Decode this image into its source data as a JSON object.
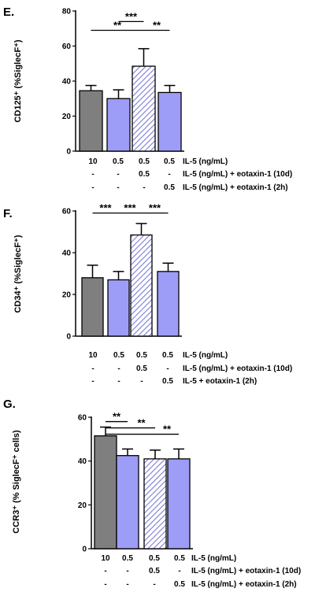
{
  "colors": {
    "dark": "#7f7f7f",
    "light": "#9d9df7",
    "hatch_stroke": "#7b7bd6",
    "hatch_bg": "#ffffff"
  },
  "chart_data": [
    {
      "panel": "E.",
      "type": "bar",
      "ylabel": "CD125⁺ (%SiglecF⁺)",
      "ylim": [
        0,
        80
      ],
      "yticks": [
        "0",
        "20",
        "40",
        "60",
        "80"
      ],
      "tick_values": [
        0,
        20,
        40,
        60,
        80
      ],
      "values": [
        34.5,
        30,
        48.5,
        33.5
      ],
      "errors": [
        3,
        5,
        10,
        4
      ],
      "fills": [
        "dark",
        "light",
        "hatch",
        "light"
      ],
      "rows": [
        {
          "cells": [
            "10",
            "0.5",
            "0.5",
            "0.5"
          ],
          "label": "IL-5 (ng/mL)"
        },
        {
          "cells": [
            "-",
            "-",
            "0.5",
            "-"
          ],
          "label": "IL-5 (ng/mL) + eotaxin-1 (10d)"
        },
        {
          "cells": [
            "-",
            "-",
            "-",
            "0.5"
          ],
          "label": "IL-5  (ng/mL) + eotaxin-1 (2h)"
        }
      ],
      "significance": [
        {
          "from": 0,
          "to": 2,
          "text": "**",
          "level": 69,
          "tier": 0
        },
        {
          "from": 1,
          "to": 2,
          "text": "***",
          "level": 74,
          "tier": 0
        },
        {
          "from": 2,
          "to": 3,
          "text": "**",
          "level": 69,
          "tier": 0
        }
      ]
    },
    {
      "panel": "F.",
      "type": "bar",
      "ylabel": "CD34⁺ (%SiglecF⁺)",
      "ylim": [
        0,
        60
      ],
      "yticks": [
        "0",
        "20",
        "40",
        "60"
      ],
      "tick_values": [
        0,
        20,
        40,
        60
      ],
      "values": [
        28,
        27,
        48.5,
        31
      ],
      "errors": [
        6,
        4,
        5.5,
        4
      ],
      "fills": [
        "dark",
        "light",
        "hatch",
        "light"
      ],
      "rows": [
        {
          "cells": [
            "10",
            "0.5",
            "0.5",
            "0.5"
          ],
          "label": "IL-5 (ng/mL)"
        },
        {
          "cells": [
            "-",
            "-",
            "0.5",
            "-"
          ],
          "label": "IL-5 (ng/mL) + eotaxin-1 (10d)"
        },
        {
          "cells": [
            "-",
            "-",
            "-",
            "0.5"
          ],
          "label": "IL-5 + eotaxin-1 (2h)"
        }
      ],
      "significance": [
        {
          "from": 0,
          "to": 1,
          "text": "***",
          "level": 59,
          "tier": 0
        },
        {
          "from": 1,
          "to": 2,
          "text": "***",
          "level": 59,
          "tier": 0
        },
        {
          "from": 2,
          "to": 3,
          "text": "***",
          "level": 59,
          "tier": 0
        }
      ]
    },
    {
      "panel": "G.",
      "type": "bar",
      "ylabel": "CCR3⁺ (% SiglecF⁺ cells)",
      "ylim": [
        0,
        60
      ],
      "yticks": [
        "0",
        "20",
        "40",
        "60"
      ],
      "tick_values": [
        0,
        20,
        40,
        60
      ],
      "values": [
        51.5,
        42.5,
        41,
        41
      ],
      "errors": [
        4,
        3,
        4,
        4.5
      ],
      "fills": [
        "dark",
        "light",
        "hatch",
        "light"
      ],
      "rows": [
        {
          "cells": [
            "10",
            "0.5",
            "0.5",
            "0.5"
          ],
          "label": "IL-5 (ng/mL)"
        },
        {
          "cells": [
            "-",
            "-",
            "0.5",
            "-"
          ],
          "label": "IL-5 (ng/mL) + eotaxin-1 (10d)"
        },
        {
          "cells": [
            "-",
            "-",
            "-",
            "0.5"
          ],
          "label": "IL-5 (ng/mL) + eotaxin-1 (2h)"
        }
      ],
      "significance": [
        {
          "from": 0,
          "to": 1,
          "text": "**",
          "level": 58,
          "tier": 0
        },
        {
          "from": 0,
          "to": 2,
          "text": "**",
          "level": 58,
          "tier": 1
        },
        {
          "from": 0,
          "to": 3,
          "text": "**",
          "level": 58,
          "tier": 2
        }
      ]
    }
  ]
}
